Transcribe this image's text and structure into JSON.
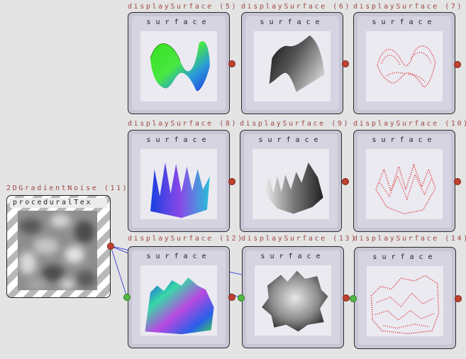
{
  "colors": {
    "title_text": "#a04848",
    "node_frame": "#c8c6d4",
    "wire": "#4a4ad8",
    "port_out": "#c0412f",
    "port_in": "#52b944"
  },
  "source_node": {
    "title": "2DGradientNoise (11)",
    "label": "proceduralTex"
  },
  "display_nodes": [
    {
      "title": "displaySurface (5)",
      "label": "surface",
      "preview": "rainbow-saddle-surface"
    },
    {
      "title": "displaySurface (6)",
      "label": "surface",
      "preview": "gray-arch-surface"
    },
    {
      "title": "displaySurface (7)",
      "label": "surface",
      "preview": "red-point-cloud-saddle"
    },
    {
      "title": "displaySurface (8)",
      "label": "surface",
      "preview": "rainbow-ridges-surface"
    },
    {
      "title": "displaySurface (9)",
      "label": "surface",
      "preview": "gray-ridges-surface"
    },
    {
      "title": "displaySurface (10)",
      "label": "surface",
      "preview": "red-point-cloud-ridges"
    },
    {
      "title": "displaySurface (12)",
      "label": "surface",
      "preview": "rainbow-noise-terrain"
    },
    {
      "title": "displaySurface (13)",
      "label": "surface",
      "preview": "gray-noise-terrain"
    },
    {
      "title": "displaySurface (14)",
      "label": "surface",
      "preview": "red-point-cloud-terrain"
    }
  ]
}
